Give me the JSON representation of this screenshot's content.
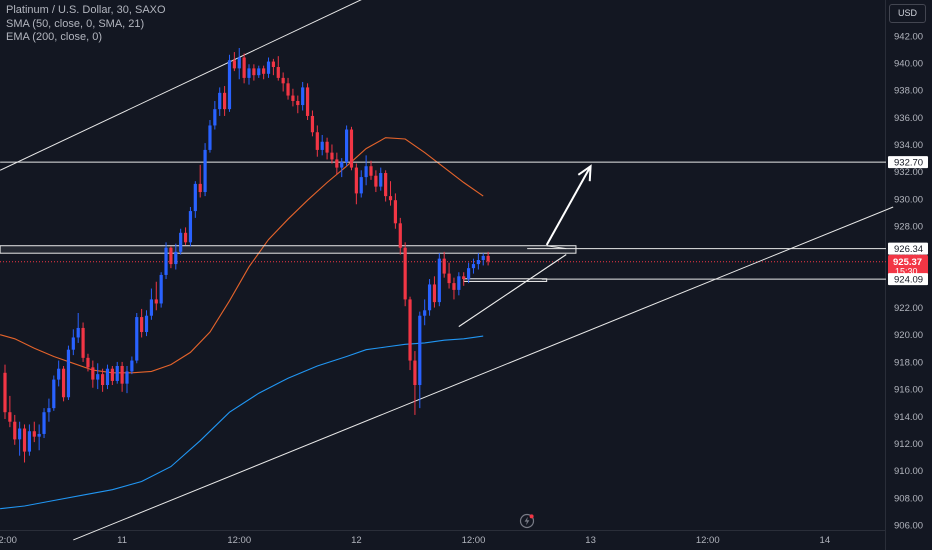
{
  "legend": {
    "title": "Platinum / U.S. Dollar, 30, SAXO",
    "sma": "SMA (50, close, 0, SMA, 21)",
    "ema": "EMA (200, close, 0)"
  },
  "currency_button": "USD",
  "colors": {
    "background": "#131722",
    "up": "#2962ff",
    "down": "#f23645",
    "sma": "#e4632b",
    "ema": "#2196f3",
    "level": "#e8e8e8",
    "price_badge": "#f23645"
  },
  "chart_data": {
    "type": "candlestick",
    "title": "Platinum / U.S. Dollar, 30, SAXO",
    "ylim": [
      905.5,
      944.0
    ],
    "y_ticks": [
      "906.00",
      "908.00",
      "910.00",
      "912.00",
      "914.00",
      "916.00",
      "918.00",
      "920.00",
      "922.00",
      "924.00",
      "926.00",
      "928.00",
      "930.00",
      "932.00",
      "934.00",
      "936.00",
      "938.00",
      "940.00",
      "942.00"
    ],
    "x_ticks": [
      {
        "label": "12:00",
        "bar": 0
      },
      {
        "label": "11",
        "bar": 24
      },
      {
        "label": "12:00",
        "bar": 48
      },
      {
        "label": "12",
        "bar": 72
      },
      {
        "label": "12:00",
        "bar": 96
      },
      {
        "label": "13",
        "bar": 120
      },
      {
        "label": "12:00",
        "bar": 144
      },
      {
        "label": "14",
        "bar": 168
      }
    ],
    "price_labels": [
      {
        "value": 932.7,
        "text": "932.70",
        "kind": "level"
      },
      {
        "value": 926.34,
        "text": "926.34",
        "kind": "level"
      },
      {
        "value": 925.37,
        "text": "925.37",
        "sub": "15:30",
        "kind": "current"
      },
      {
        "value": 924.09,
        "text": "924.09",
        "kind": "level"
      }
    ],
    "levels": [
      {
        "value": 932.7,
        "from_bar": -1,
        "to_bar": 181
      },
      {
        "value": 926.34,
        "from_bar": 107,
        "to_bar": 181
      },
      {
        "value": 924.09,
        "from_bar": 110,
        "to_bar": 181
      }
    ],
    "zone": {
      "top": 926.55,
      "bottom": 926.0,
      "from_bar": -1,
      "to_bar": 117
    },
    "zone2": {
      "top": 924.12,
      "bottom": 923.92,
      "from_bar": 94,
      "to_bar": 111
    },
    "current_price": 925.37,
    "trendlines": [
      {
        "x1": -1,
        "y1": 932.1,
        "x2": 78,
        "y2": 945.5
      },
      {
        "x1": 14,
        "y1": 904.9,
        "x2": 182,
        "y2": 929.4
      },
      {
        "x1": 93,
        "y1": 920.6,
        "x2": 115,
        "y2": 925.9
      },
      {
        "x1": 115,
        "y1": 925.9,
        "x2": 93,
        "y2": 920.6
      },
      {
        "x1": 111,
        "y1": 926.55,
        "x2": 115,
        "y2": 926.34
      }
    ],
    "arrow": {
      "x1": 111,
      "y1": 926.6,
      "x2": 120,
      "y2": 932.4
    },
    "candles": [
      [
        0,
        917.2,
        917.8,
        913.8,
        914.3
      ],
      [
        1,
        914.3,
        915.5,
        913.2,
        913.6
      ],
      [
        2,
        913.6,
        914.1,
        911.9,
        912.3
      ],
      [
        3,
        912.3,
        913.6,
        911.1,
        913.1
      ],
      [
        4,
        913.1,
        913.4,
        910.6,
        911.4
      ],
      [
        5,
        911.4,
        913.4,
        911.1,
        912.9
      ],
      [
        6,
        912.9,
        913.6,
        912.1,
        912.5
      ],
      [
        7,
        912.5,
        913.4,
        911.5,
        912.7
      ],
      [
        8,
        912.7,
        914.6,
        912.4,
        914.3
      ],
      [
        9,
        914.3,
        915.3,
        913.6,
        914.6
      ],
      [
        10,
        914.6,
        917.0,
        914.4,
        916.7
      ],
      [
        11,
        916.7,
        918.1,
        916.2,
        917.5
      ],
      [
        12,
        917.5,
        917.7,
        915.1,
        915.4
      ],
      [
        13,
        915.4,
        919.2,
        915.2,
        918.9
      ],
      [
        14,
        918.9,
        920.4,
        918.5,
        919.8
      ],
      [
        15,
        919.8,
        921.6,
        919.4,
        920.5
      ],
      [
        16,
        920.5,
        920.9,
        918.0,
        918.3
      ],
      [
        17,
        918.3,
        918.6,
        917.3,
        917.6
      ],
      [
        18,
        917.6,
        918.1,
        916.1,
        916.7
      ],
      [
        19,
        916.7,
        917.9,
        916.0,
        917.1
      ],
      [
        20,
        917.1,
        917.5,
        915.8,
        916.3
      ],
      [
        21,
        916.3,
        917.8,
        916.0,
        917.5
      ],
      [
        22,
        917.5,
        917.7,
        916.3,
        916.6
      ],
      [
        23,
        916.6,
        918.0,
        916.4,
        917.7
      ],
      [
        24,
        917.7,
        918.0,
        915.8,
        916.4
      ],
      [
        25,
        916.4,
        917.7,
        915.7,
        917.3
      ],
      [
        26,
        917.3,
        918.4,
        917.1,
        918.1
      ],
      [
        27,
        918.1,
        921.6,
        917.9,
        921.3
      ],
      [
        28,
        921.3,
        921.9,
        919.8,
        920.2
      ],
      [
        29,
        920.2,
        921.8,
        919.9,
        921.4
      ],
      [
        30,
        921.4,
        923.4,
        921.1,
        922.6
      ],
      [
        31,
        922.6,
        923.9,
        921.8,
        922.3
      ],
      [
        32,
        922.3,
        924.6,
        922.0,
        924.4
      ],
      [
        33,
        924.4,
        926.8,
        924.1,
        926.4
      ],
      [
        34,
        926.4,
        926.5,
        924.9,
        925.2
      ],
      [
        35,
        925.2,
        926.7,
        924.8,
        926.1
      ],
      [
        36,
        926.1,
        927.8,
        925.9,
        927.5
      ],
      [
        37,
        927.5,
        927.9,
        926.6,
        926.8
      ],
      [
        38,
        926.8,
        929.4,
        926.5,
        929.1
      ],
      [
        39,
        929.1,
        931.3,
        928.6,
        931.1
      ],
      [
        40,
        931.1,
        932.5,
        930.1,
        930.5
      ],
      [
        41,
        930.5,
        934.1,
        930.2,
        933.6
      ],
      [
        42,
        933.6,
        935.8,
        933.4,
        935.4
      ],
      [
        43,
        935.4,
        937.2,
        935.1,
        936.6
      ],
      [
        44,
        936.6,
        938.2,
        936.1,
        937.8
      ],
      [
        45,
        937.8,
        938.3,
        936.1,
        936.6
      ],
      [
        46,
        936.6,
        940.6,
        936.4,
        940.2
      ],
      [
        47,
        940.2,
        940.8,
        939.4,
        939.6
      ],
      [
        48,
        939.6,
        941.1,
        938.8,
        940.4
      ],
      [
        49,
        940.4,
        940.7,
        938.5,
        938.9
      ],
      [
        50,
        938.9,
        939.9,
        938.4,
        939.6
      ],
      [
        51,
        939.6,
        939.9,
        938.7,
        939.1
      ],
      [
        52,
        939.1,
        939.8,
        938.9,
        939.6
      ],
      [
        53,
        939.6,
        939.8,
        938.8,
        939.2
      ],
      [
        54,
        939.2,
        940.4,
        938.9,
        940.1
      ],
      [
        55,
        940.1,
        940.3,
        939.1,
        939.7
      ],
      [
        56,
        939.7,
        940.5,
        938.7,
        938.9
      ],
      [
        57,
        938.9,
        939.3,
        937.9,
        938.5
      ],
      [
        58,
        938.5,
        938.9,
        937.3,
        937.6
      ],
      [
        59,
        937.6,
        938.1,
        936.8,
        937.2
      ],
      [
        60,
        937.2,
        937.6,
        936.3,
        936.9
      ],
      [
        61,
        936.9,
        938.6,
        936.5,
        938.2
      ],
      [
        62,
        938.2,
        938.5,
        935.8,
        936.1
      ],
      [
        63,
        936.1,
        936.5,
        934.6,
        934.9
      ],
      [
        64,
        934.9,
        935.4,
        933.1,
        933.6
      ],
      [
        65,
        933.6,
        934.7,
        933.2,
        934.2
      ],
      [
        66,
        934.2,
        934.5,
        932.9,
        933.4
      ],
      [
        67,
        933.4,
        934.0,
        932.6,
        932.9
      ],
      [
        68,
        932.9,
        933.4,
        931.8,
        932.3
      ],
      [
        69,
        932.3,
        933.0,
        931.6,
        932.7
      ],
      [
        70,
        932.7,
        935.4,
        932.4,
        935.1
      ],
      [
        71,
        935.1,
        935.3,
        932.1,
        932.3
      ],
      [
        72,
        932.3,
        932.6,
        929.6,
        930.4
      ],
      [
        73,
        930.4,
        932.1,
        930.1,
        931.6
      ],
      [
        74,
        931.6,
        933.2,
        931.0,
        932.4
      ],
      [
        75,
        932.4,
        932.8,
        931.4,
        931.7
      ],
      [
        76,
        931.7,
        932.1,
        930.5,
        930.9
      ],
      [
        77,
        930.9,
        932.3,
        930.6,
        931.9
      ],
      [
        78,
        931.9,
        932.1,
        929.8,
        930.2
      ],
      [
        79,
        930.2,
        931.3,
        929.5,
        929.9
      ],
      [
        80,
        929.9,
        930.4,
        927.8,
        928.2
      ],
      [
        81,
        928.2,
        928.6,
        925.9,
        926.4
      ],
      [
        82,
        926.4,
        926.8,
        922.1,
        922.6
      ],
      [
        83,
        922.6,
        922.8,
        917.4,
        918.1
      ],
      [
        84,
        918.1,
        918.8,
        914.1,
        916.3
      ],
      [
        85,
        916.3,
        921.7,
        914.6,
        921.4
      ],
      [
        86,
        921.4,
        922.6,
        920.7,
        921.8
      ],
      [
        87,
        921.8,
        924.1,
        921.4,
        923.7
      ],
      [
        88,
        923.7,
        924.3,
        922.0,
        922.4
      ],
      [
        89,
        922.4,
        926.0,
        922.1,
        925.6
      ],
      [
        90,
        925.6,
        926.1,
        924.2,
        924.5
      ],
      [
        91,
        924.5,
        925.3,
        923.4,
        923.8
      ],
      [
        92,
        923.8,
        924.2,
        922.6,
        923.3
      ],
      [
        93,
        923.3,
        924.6,
        922.9,
        924.3
      ],
      [
        94,
        924.3,
        924.6,
        923.6,
        924.1
      ],
      [
        95,
        924.1,
        925.3,
        923.8,
        924.9
      ],
      [
        96,
        924.9,
        925.6,
        924.5,
        925.2
      ],
      [
        97,
        925.2,
        926.0,
        924.8,
        925.5
      ],
      [
        98,
        925.5,
        926.0,
        925.1,
        925.8
      ],
      [
        99,
        925.8,
        926.1,
        925.1,
        925.4
      ]
    ],
    "sma_points": [
      [
        -1,
        920.0
      ],
      [
        2,
        919.7
      ],
      [
        6,
        919.0
      ],
      [
        10,
        918.4
      ],
      [
        14,
        917.9
      ],
      [
        18,
        917.4
      ],
      [
        22,
        917.2
      ],
      [
        26,
        917.2
      ],
      [
        30,
        917.3
      ],
      [
        34,
        917.8
      ],
      [
        38,
        918.7
      ],
      [
        42,
        920.2
      ],
      [
        46,
        922.5
      ],
      [
        50,
        925.0
      ],
      [
        54,
        927.0
      ],
      [
        58,
        928.5
      ],
      [
        62,
        929.9
      ],
      [
        66,
        931.2
      ],
      [
        70,
        932.4
      ],
      [
        74,
        933.7
      ],
      [
        78,
        934.5
      ],
      [
        82,
        934.4
      ],
      [
        86,
        933.4
      ],
      [
        90,
        932.3
      ],
      [
        94,
        931.2
      ],
      [
        98,
        930.2
      ]
    ],
    "ema_points": [
      [
        -1,
        907.2
      ],
      [
        4,
        907.4
      ],
      [
        10,
        907.8
      ],
      [
        16,
        908.2
      ],
      [
        22,
        908.6
      ],
      [
        28,
        909.2
      ],
      [
        34,
        910.3
      ],
      [
        40,
        912.2
      ],
      [
        46,
        914.3
      ],
      [
        52,
        915.7
      ],
      [
        58,
        916.8
      ],
      [
        64,
        917.7
      ],
      [
        70,
        918.4
      ],
      [
        74,
        918.9
      ],
      [
        78,
        919.1
      ],
      [
        82,
        919.3
      ],
      [
        86,
        919.4
      ],
      [
        90,
        919.6
      ],
      [
        94,
        919.7
      ],
      [
        98,
        919.9
      ]
    ]
  }
}
